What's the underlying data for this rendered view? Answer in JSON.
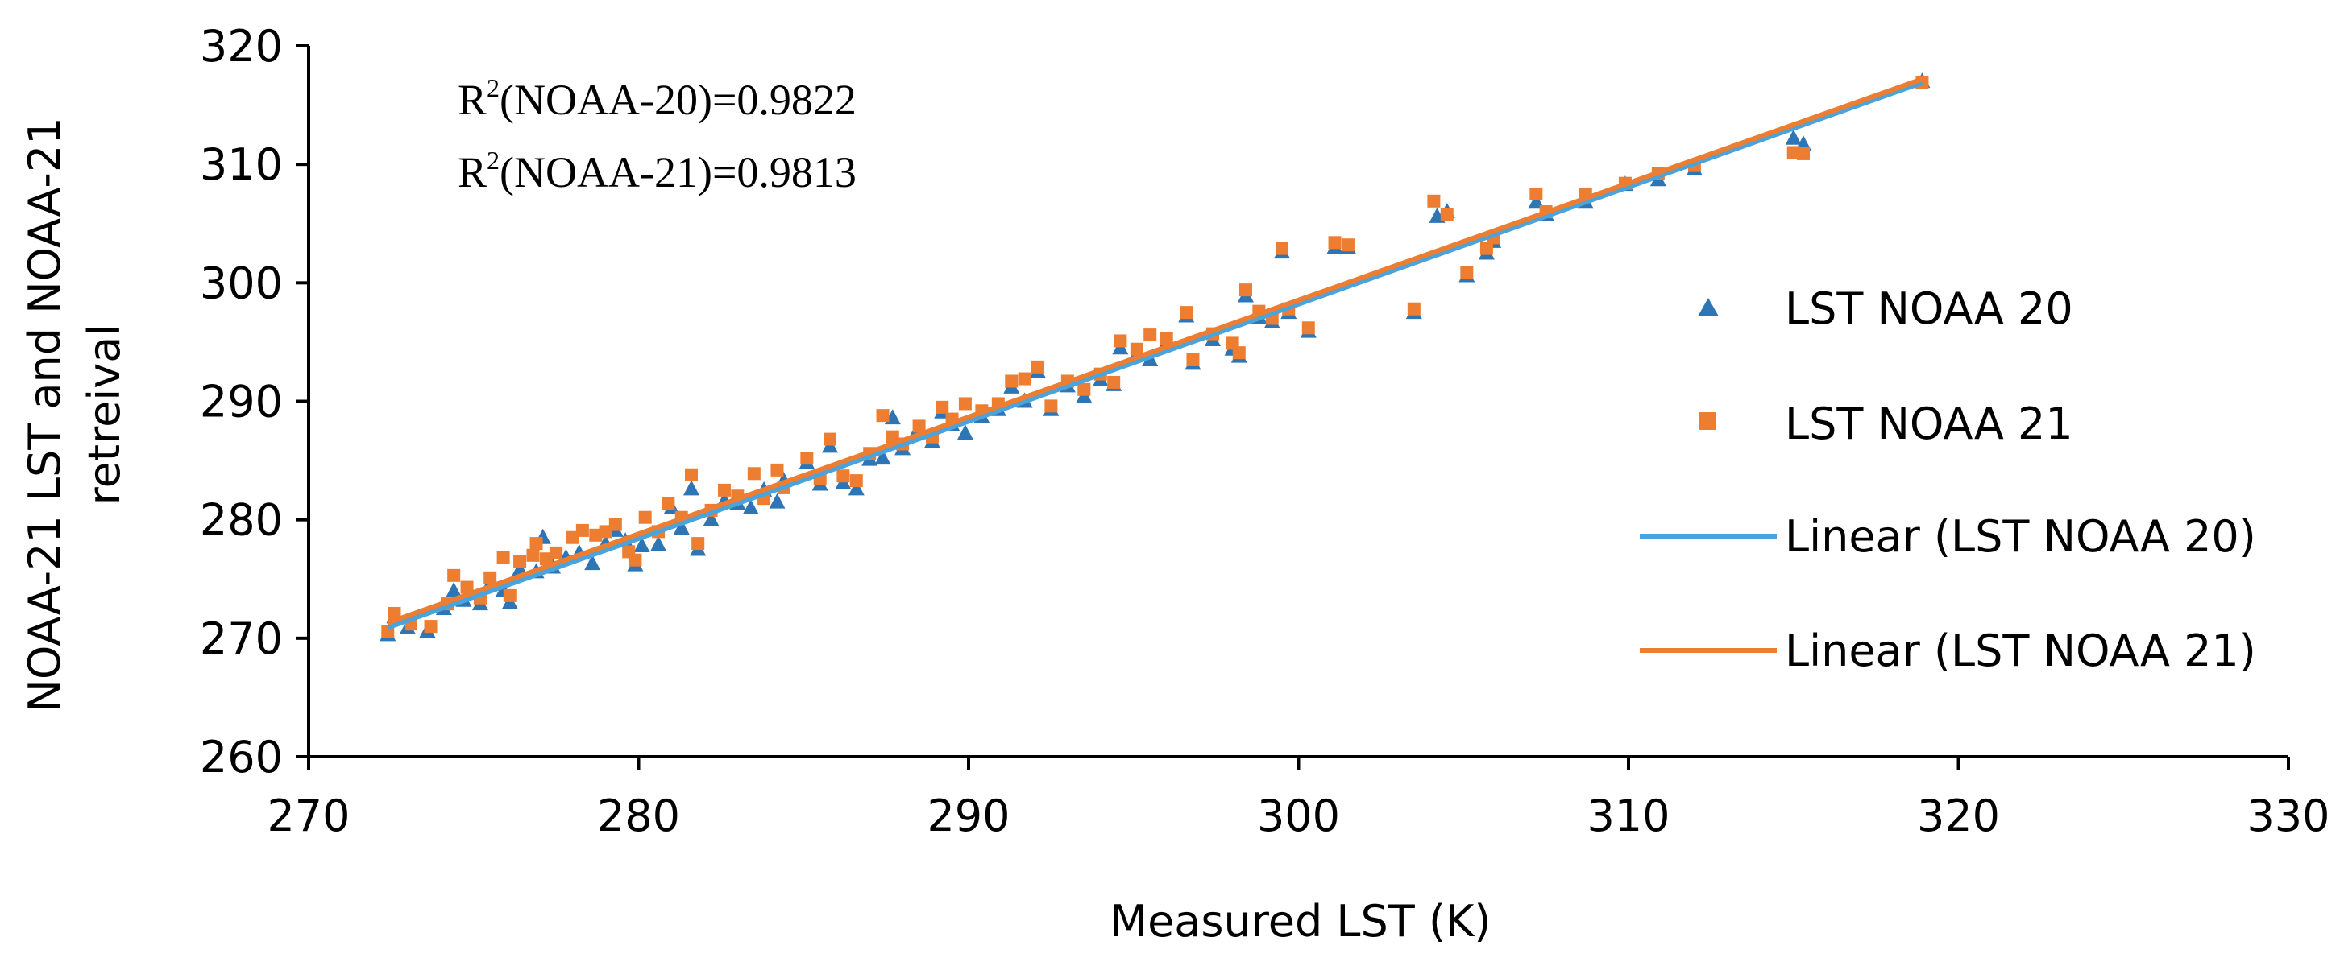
{
  "chart_data": {
    "type": "scatter",
    "xlabel": "Measured LST (K)",
    "ylabel_lines": [
      "NOAA-21 LST and NOAA-21",
      "retreival"
    ],
    "xlim": [
      270,
      330
    ],
    "ylim": [
      260,
      320
    ],
    "xticks": [
      270,
      280,
      290,
      300,
      310,
      320,
      330
    ],
    "yticks": [
      260,
      270,
      280,
      290,
      300,
      310,
      320
    ],
    "grid": false,
    "legend_position": "right",
    "annotations": [
      {
        "base": "R",
        "sup": "2",
        "text": "(NOAA-20)=0.9822"
      },
      {
        "base": "R",
        "sup": "2",
        "text": "(NOAA-21)=0.9813"
      }
    ],
    "legend": [
      {
        "label": "LST NOAA 20",
        "kind": "triangle",
        "color": "#2E75B6"
      },
      {
        "label": "LST NOAA 21",
        "kind": "square",
        "color": "#ED7D31"
      },
      {
        "label": "Linear (LST NOAA 20)",
        "kind": "line",
        "color": "#4BA3DB"
      },
      {
        "label": "Linear (LST NOAA 21)",
        "kind": "line",
        "color": "#ED7D31"
      }
    ],
    "trendlines": [
      {
        "name": "Linear (LST NOAA 20)",
        "color": "#4BA3DB",
        "x": [
          272.4,
          318.9
        ],
        "y": [
          270.9,
          316.9
        ]
      },
      {
        "name": "Linear (LST NOAA 21)",
        "color": "#ED7D31",
        "x": [
          272.4,
          318.9
        ],
        "y": [
          271.3,
          317.2
        ]
      }
    ],
    "series": [
      {
        "name": "LST NOAA 20",
        "marker": "triangle",
        "color": "#2E75B6",
        "points": [
          [
            272.4,
            270.3
          ],
          [
            272.6,
            271.8
          ],
          [
            273.0,
            270.9
          ],
          [
            273.6,
            270.6
          ],
          [
            274.1,
            272.5
          ],
          [
            274.4,
            274.0
          ],
          [
            274.7,
            273.2
          ],
          [
            275.2,
            272.9
          ],
          [
            275.5,
            274.6
          ],
          [
            275.9,
            274.0
          ],
          [
            276.1,
            273.0
          ],
          [
            276.4,
            275.8
          ],
          [
            276.9,
            275.6
          ],
          [
            277.1,
            278.5
          ],
          [
            277.4,
            276.0
          ],
          [
            277.8,
            276.8
          ],
          [
            278.2,
            277.2
          ],
          [
            278.6,
            276.3
          ],
          [
            279.0,
            278.0
          ],
          [
            279.3,
            279.1
          ],
          [
            279.6,
            278.2
          ],
          [
            279.9,
            276.2
          ],
          [
            280.1,
            277.8
          ],
          [
            280.6,
            277.9
          ],
          [
            281.0,
            281.0
          ],
          [
            281.3,
            279.3
          ],
          [
            281.6,
            282.6
          ],
          [
            281.8,
            277.5
          ],
          [
            282.2,
            280.0
          ],
          [
            282.6,
            281.6
          ],
          [
            283.0,
            281.4
          ],
          [
            283.4,
            281.0
          ],
          [
            283.8,
            282.5
          ],
          [
            284.2,
            281.5
          ],
          [
            284.4,
            283.3
          ],
          [
            285.1,
            284.8
          ],
          [
            285.5,
            283.0
          ],
          [
            285.8,
            286.2
          ],
          [
            286.2,
            283.1
          ],
          [
            286.6,
            282.6
          ],
          [
            287.0,
            285.1
          ],
          [
            287.4,
            285.2
          ],
          [
            287.7,
            288.6
          ],
          [
            288.0,
            286.0
          ],
          [
            288.4,
            287.3
          ],
          [
            288.9,
            286.6
          ],
          [
            289.2,
            289.1
          ],
          [
            289.5,
            288.0
          ],
          [
            289.9,
            287.3
          ],
          [
            290.4,
            288.7
          ],
          [
            290.9,
            289.3
          ],
          [
            291.3,
            291.2
          ],
          [
            291.7,
            290.0
          ],
          [
            292.1,
            292.5
          ],
          [
            292.5,
            289.3
          ],
          [
            293.0,
            291.3
          ],
          [
            293.5,
            290.4
          ],
          [
            294.0,
            291.8
          ],
          [
            294.4,
            291.4
          ],
          [
            294.6,
            294.5
          ],
          [
            295.1,
            294.0
          ],
          [
            295.5,
            293.5
          ],
          [
            296.0,
            295.0
          ],
          [
            296.6,
            297.2
          ],
          [
            296.8,
            293.2
          ],
          [
            297.4,
            295.2
          ],
          [
            298.0,
            294.4
          ],
          [
            298.2,
            293.8
          ],
          [
            298.4,
            298.9
          ],
          [
            298.8,
            297.1
          ],
          [
            299.2,
            296.7
          ],
          [
            299.5,
            302.6
          ],
          [
            299.7,
            297.5
          ],
          [
            300.3,
            295.9
          ],
          [
            301.1,
            303.0
          ],
          [
            301.5,
            303.0
          ],
          [
            303.5,
            297.5
          ],
          [
            304.2,
            305.6
          ],
          [
            304.5,
            306.0
          ],
          [
            305.1,
            300.6
          ],
          [
            305.7,
            302.5
          ],
          [
            305.9,
            303.5
          ],
          [
            307.2,
            306.8
          ],
          [
            307.5,
            305.8
          ],
          [
            308.7,
            306.8
          ],
          [
            309.9,
            308.3
          ],
          [
            310.9,
            308.7
          ],
          [
            312.0,
            309.6
          ],
          [
            315.0,
            312.2
          ],
          [
            315.3,
            311.7
          ],
          [
            318.9,
            317.0
          ]
        ]
      },
      {
        "name": "LST NOAA 21",
        "marker": "square",
        "color": "#ED7D31",
        "points": [
          [
            272.4,
            270.6
          ],
          [
            272.6,
            272.1
          ],
          [
            273.1,
            271.2
          ],
          [
            273.7,
            271.0
          ],
          [
            274.2,
            272.9
          ],
          [
            274.4,
            275.3
          ],
          [
            274.8,
            274.3
          ],
          [
            275.2,
            273.4
          ],
          [
            275.5,
            275.1
          ],
          [
            275.9,
            276.8
          ],
          [
            276.1,
            273.6
          ],
          [
            276.4,
            276.5
          ],
          [
            276.8,
            277.0
          ],
          [
            276.9,
            278.0
          ],
          [
            277.2,
            276.7
          ],
          [
            277.5,
            277.2
          ],
          [
            278.0,
            278.5
          ],
          [
            278.3,
            279.1
          ],
          [
            278.7,
            278.7
          ],
          [
            279.0,
            279.0
          ],
          [
            279.3,
            279.6
          ],
          [
            279.7,
            277.3
          ],
          [
            279.9,
            276.6
          ],
          [
            280.2,
            280.2
          ],
          [
            280.6,
            279.0
          ],
          [
            280.9,
            281.4
          ],
          [
            281.3,
            280.2
          ],
          [
            281.6,
            283.8
          ],
          [
            281.8,
            278.0
          ],
          [
            282.2,
            280.8
          ],
          [
            282.6,
            282.5
          ],
          [
            283.0,
            282.0
          ],
          [
            283.5,
            283.9
          ],
          [
            283.8,
            281.8
          ],
          [
            284.2,
            284.2
          ],
          [
            284.4,
            282.7
          ],
          [
            285.1,
            285.2
          ],
          [
            285.5,
            283.5
          ],
          [
            285.8,
            286.8
          ],
          [
            286.2,
            283.7
          ],
          [
            286.6,
            283.3
          ],
          [
            287.0,
            285.6
          ],
          [
            287.4,
            288.8
          ],
          [
            287.7,
            287.0
          ],
          [
            288.0,
            286.4
          ],
          [
            288.5,
            287.9
          ],
          [
            288.9,
            287.0
          ],
          [
            289.2,
            289.5
          ],
          [
            289.5,
            288.5
          ],
          [
            289.9,
            289.8
          ],
          [
            290.4,
            289.2
          ],
          [
            290.9,
            289.8
          ],
          [
            291.3,
            291.7
          ],
          [
            291.7,
            291.9
          ],
          [
            292.1,
            292.9
          ],
          [
            292.5,
            289.6
          ],
          [
            293.0,
            291.7
          ],
          [
            293.5,
            291.0
          ],
          [
            294.0,
            292.3
          ],
          [
            294.4,
            291.6
          ],
          [
            294.6,
            295.1
          ],
          [
            295.1,
            294.4
          ],
          [
            295.5,
            295.6
          ],
          [
            296.0,
            295.3
          ],
          [
            296.6,
            297.5
          ],
          [
            296.8,
            293.5
          ],
          [
            297.4,
            295.7
          ],
          [
            298.0,
            294.9
          ],
          [
            298.2,
            294.1
          ],
          [
            298.4,
            299.4
          ],
          [
            298.8,
            297.6
          ],
          [
            299.2,
            297.0
          ],
          [
            299.5,
            302.9
          ],
          [
            299.7,
            297.8
          ],
          [
            300.3,
            296.2
          ],
          [
            301.1,
            303.4
          ],
          [
            301.5,
            303.2
          ],
          [
            303.5,
            297.8
          ],
          [
            304.1,
            306.9
          ],
          [
            304.5,
            305.8
          ],
          [
            305.1,
            300.9
          ],
          [
            305.7,
            302.9
          ],
          [
            305.9,
            303.8
          ],
          [
            307.2,
            307.5
          ],
          [
            307.5,
            306.0
          ],
          [
            308.7,
            307.5
          ],
          [
            309.9,
            308.4
          ],
          [
            310.9,
            309.2
          ],
          [
            312.0,
            309.9
          ],
          [
            315.0,
            311.0
          ],
          [
            315.3,
            310.9
          ],
          [
            318.9,
            316.9
          ]
        ]
      }
    ]
  }
}
